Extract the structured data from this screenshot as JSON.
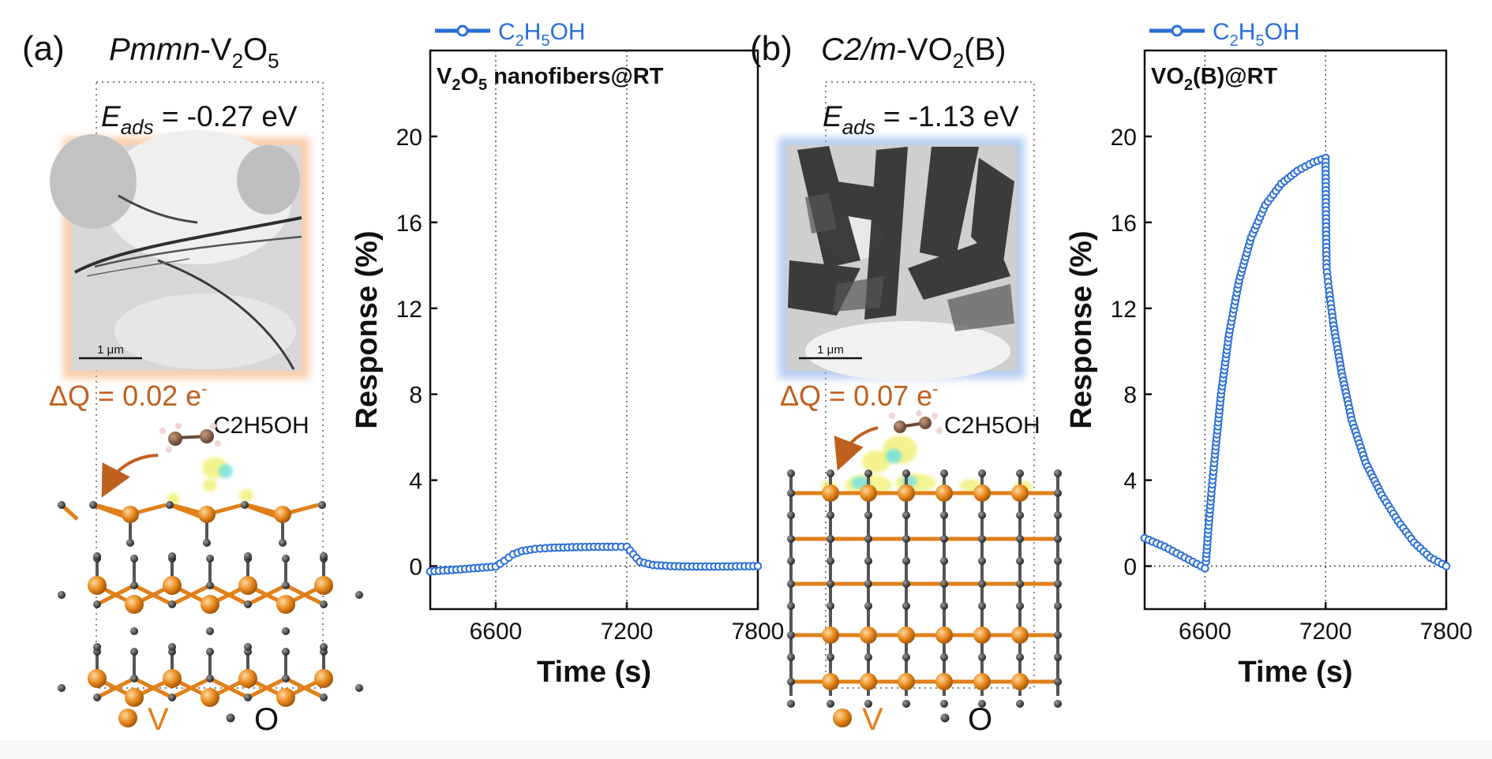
{
  "figure": {
    "panel_a": {
      "label": "(a)",
      "phase_italic": "Pmmn",
      "phase_rest": "-V",
      "phase_sub1": "2",
      "phase_o": "O",
      "phase_sub2": "5",
      "eads_symbol": "E",
      "eads_subscript": "ads",
      "eads_value": " = -0.27 eV",
      "charge_main": "ΔQ = 0.02 e",
      "charge_sup": "-",
      "molecule": "C2H5OH",
      "scale_bar": "1 μm",
      "legend_v": "V",
      "legend_o": "O"
    },
    "panel_b": {
      "label": "(b)",
      "phase_italic": "C2/m",
      "phase_rest": "-VO",
      "phase_sub1": "2",
      "phase_tail": "(B)",
      "eads_symbol": "E",
      "eads_subscript": "ads",
      "eads_value": " = -1.13 eV",
      "charge_main": "ΔQ = 0.07 e",
      "charge_sup": "-",
      "molecule": "C2H5OH",
      "scale_bar": "1 μm",
      "legend_v": "V",
      "legend_o": "O"
    },
    "colors": {
      "vanadium": "#e0801a",
      "oxygen": "#3a3a3a",
      "series": "#2a6fd8",
      "charge_text": "#c0601e",
      "frame_a": "#f6a468",
      "frame_b": "#7fa6ea"
    }
  },
  "chart_data": [
    {
      "type": "scatter",
      "title": "V2O5 nanofibers@RT",
      "title_parts": [
        "V",
        "2",
        "O",
        "5",
        " nanofibers@RT"
      ],
      "xlabel": "Time (s)",
      "ylabel": "Response (%)",
      "xlim": [
        6300,
        7800
      ],
      "ylim": [
        -2,
        24
      ],
      "xticks": [
        6600,
        7200,
        7800
      ],
      "yticks": [
        0,
        4,
        8,
        12,
        16,
        20
      ],
      "vlines": [
        6600,
        7200
      ],
      "legend": "C2H5OH",
      "legend_position": "top-center",
      "series": [
        {
          "name": "C2H5OH",
          "x": [
            6300,
            6400,
            6500,
            6600,
            6640,
            6680,
            6720,
            6780,
            6850,
            6950,
            7050,
            7150,
            7200,
            7230,
            7260,
            7320,
            7400,
            7500,
            7600,
            7700,
            7800
          ],
          "y": [
            -0.25,
            -0.18,
            -0.1,
            -0.02,
            0.25,
            0.55,
            0.7,
            0.8,
            0.85,
            0.88,
            0.9,
            0.9,
            0.9,
            0.55,
            0.2,
            0.05,
            0.0,
            -0.02,
            -0.02,
            -0.01,
            0.0
          ]
        }
      ]
    },
    {
      "type": "scatter",
      "title": "VO2(B)@RT",
      "title_parts": [
        "VO",
        "2",
        "(B)@RT"
      ],
      "xlabel": "Time (s)",
      "ylabel": "Response (%)",
      "xlim": [
        6300,
        7800
      ],
      "ylim": [
        -2,
        24
      ],
      "xticks": [
        6600,
        7200,
        7800
      ],
      "yticks": [
        0,
        4,
        8,
        12,
        16,
        20
      ],
      "vlines": [
        6600,
        7200
      ],
      "legend": "C2H5OH",
      "legend_position": "top-center",
      "series": [
        {
          "name": "C2H5OH",
          "x": [
            6300,
            6400,
            6500,
            6560,
            6600,
            6605,
            6615,
            6630,
            6650,
            6680,
            6720,
            6770,
            6830,
            6900,
            6980,
            7060,
            7140,
            7200,
            7202,
            7205,
            7215,
            7240,
            7280,
            7330,
            7400,
            7480,
            7560,
            7640,
            7720,
            7800
          ],
          "y": [
            1.3,
            0.9,
            0.4,
            0.1,
            -0.1,
            0.2,
            1.5,
            3.2,
            5.2,
            8.0,
            10.8,
            13.3,
            15.3,
            16.8,
            17.8,
            18.4,
            18.8,
            19.0,
            16.0,
            13.9,
            13.0,
            11.2,
            9.0,
            6.8,
            4.8,
            3.3,
            2.1,
            1.1,
            0.4,
            0.0
          ]
        }
      ]
    }
  ]
}
